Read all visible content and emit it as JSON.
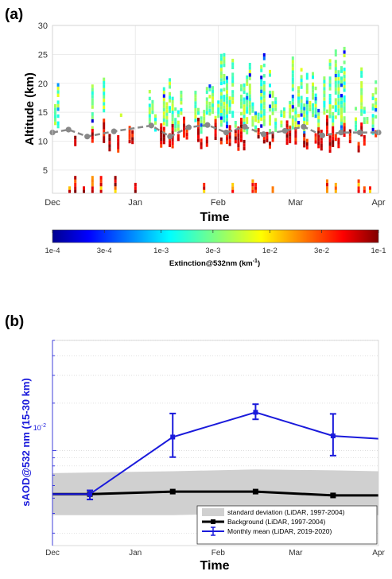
{
  "panel_labels": {
    "a": "(a)",
    "b": "(b)"
  },
  "chart_data": [
    {
      "type": "heatmap",
      "panel": "(a)",
      "xlabel": "Time",
      "ylabel": "Altitude (km)",
      "x_ticks": [
        "Dec",
        "Jan",
        "Feb",
        "Mar",
        "Apr"
      ],
      "x_range": [
        "2019-12-01",
        "2020-04-01"
      ],
      "y_ticks": [
        5,
        10,
        15,
        20,
        25,
        30
      ],
      "ylim": [
        1,
        30
      ],
      "grid": true,
      "colorbar": {
        "label": "Extinction@532nm (km",
        "label_superscript": "-1",
        "label_close": ")",
        "scale": "log",
        "range": [
          0.0001,
          0.1
        ],
        "tick_labels": [
          "1e-4",
          "3e-4",
          "1e-3",
          "3e-3",
          "1e-2",
          "3e-2",
          "1e-1"
        ],
        "colormap": "jet"
      },
      "overlay_series": {
        "style": "dashed",
        "color": "#888888",
        "x": [
          "2019-12-01",
          "2019-12-07",
          "2019-12-14",
          "2019-12-24",
          "2020-01-07",
          "2020-01-14",
          "2020-01-21",
          "2020-01-28",
          "2020-02-04",
          "2020-02-11",
          "2020-02-18",
          "2020-02-26",
          "2020-03-04",
          "2020-03-11",
          "2020-03-18",
          "2020-03-25",
          "2020-04-01"
        ],
        "y": [
          11.5,
          12.0,
          10.8,
          11.7,
          12.7,
          10.8,
          12.4,
          12.8,
          11.5,
          12.5,
          11.2,
          11.8,
          12.5,
          11.0,
          11.5,
          11.5,
          11.5
        ]
      }
    },
    {
      "type": "line",
      "panel": "(b)",
      "xlabel": "Time",
      "ylabel": "sAOD@532 nm (15-30 km)",
      "x_ticks": [
        "Dec",
        "Jan",
        "Feb",
        "Mar",
        "Apr"
      ],
      "x_range": [
        "2019-12-01",
        "2020-04-01"
      ],
      "y_scale": "log",
      "ylim": [
        0.0025,
        0.05
      ],
      "y_tick_label": {
        "base": "10",
        "exponent": "-2"
      },
      "y_tick_value": 0.01,
      "grid": "horizontal-dotted",
      "legend_position": "bottom-right",
      "legend": [
        {
          "name": "standard deviation (LiDAR, 1997-2004)",
          "kind": "band"
        },
        {
          "name": "Background (LiDAR, 1997-2004)",
          "kind": "line"
        },
        {
          "name": "Monthly mean (LiDAR, 2019-2020)",
          "kind": "errorbar"
        }
      ],
      "std_band": {
        "x": [
          "2019-12-01",
          "2020-01-15",
          "2020-02-15",
          "2020-03-15",
          "2020-04-01"
        ],
        "lower": [
          0.0039,
          0.0039,
          0.004,
          0.0039,
          0.0039
        ],
        "upper": [
          0.0072,
          0.0074,
          0.0076,
          0.0075,
          0.0074
        ]
      },
      "series": [
        {
          "name": "Background (LiDAR, 1997-2004)",
          "color": "#000000",
          "x": [
            "2019-12-01",
            "2019-12-15",
            "2020-01-15",
            "2020-02-15",
            "2020-03-15",
            "2020-04-01"
          ],
          "y": [
            0.0053,
            0.0053,
            0.0055,
            0.0055,
            0.0052,
            0.0052
          ]
        },
        {
          "name": "Monthly mean (LiDAR, 2019-2020)",
          "color": "#1a1adb",
          "x": [
            "2019-12-01",
            "2019-12-15",
            "2020-01-15",
            "2020-02-15",
            "2020-03-15",
            "2020-04-01"
          ],
          "y": [
            0.0053,
            0.0053,
            0.0122,
            0.0175,
            0.0124,
            0.0119
          ],
          "err_low": [
            null,
            0.0049,
            0.0091,
            0.0158,
            0.0093,
            null
          ],
          "err_high": [
            null,
            0.0056,
            0.0172,
            0.0197,
            0.0171,
            null
          ]
        }
      ]
    }
  ]
}
